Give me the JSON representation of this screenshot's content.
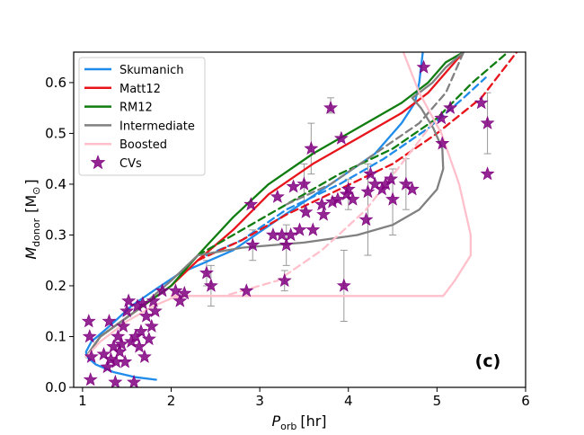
{
  "chart_data": {
    "type": "scatter",
    "panel_label": "(c)",
    "xlabel": "P",
    "xlabel_sub": "orb",
    "xlabel_unit": "[hr]",
    "ylabel": "M",
    "ylabel_sub": "donor",
    "ylabel_unit": "[M",
    "ylabel_unit_sub": "⊙",
    "ylabel_unit_close": "]",
    "xlim": [
      0.9,
      6.0
    ],
    "ylim": [
      0.0,
      0.66
    ],
    "xticks": [
      1,
      2,
      3,
      4,
      5,
      6
    ],
    "yticks": [
      0.0,
      0.1,
      0.2,
      0.3,
      0.4,
      0.5,
      0.6
    ],
    "ytick_labels": [
      "0.0",
      "0.1",
      "0.2",
      "0.3",
      "0.4",
      "0.5",
      "0.6"
    ],
    "legend_position": "top-left",
    "legend": [
      {
        "label": "Skumanich",
        "color": "#1f8ceb",
        "kind": "line"
      },
      {
        "label": "Matt12",
        "color": "#e8141c",
        "kind": "line"
      },
      {
        "label": "RM12",
        "color": "#0f7d0f",
        "kind": "line"
      },
      {
        "label": "Intermediate",
        "color": "#808080",
        "kind": "line"
      },
      {
        "label": "Boosted",
        "color": "#ffc0cb",
        "kind": "line"
      },
      {
        "label": "CVs",
        "color": "#800080",
        "kind": "star"
      }
    ],
    "series": [
      {
        "name": "Skumanich",
        "color": "#1f8ceb",
        "style": "solid",
        "x": [
          1.83,
          1.6,
          1.35,
          1.15,
          1.05,
          1.04,
          1.1,
          1.3,
          1.55,
          1.8,
          2.1,
          2.3,
          2.7,
          3.2,
          3.8,
          4.3,
          4.6,
          4.75,
          4.8,
          4.82,
          4.84
        ],
        "y": [
          0.015,
          0.02,
          0.03,
          0.045,
          0.06,
          0.07,
          0.09,
          0.12,
          0.16,
          0.19,
          0.225,
          0.24,
          0.27,
          0.33,
          0.4,
          0.46,
          0.52,
          0.56,
          0.6,
          0.63,
          0.66
        ]
      },
      {
        "name": "Skumanich (projected)",
        "color": "#1f8ceb",
        "style": "dashed",
        "x": [
          2.4,
          2.8,
          3.3,
          3.9,
          4.4,
          4.9,
          5.3,
          5.55
        ],
        "y": [
          0.26,
          0.29,
          0.35,
          0.4,
          0.45,
          0.51,
          0.57,
          0.61
        ]
      },
      {
        "name": "Matt12",
        "color": "#e8141c",
        "style": "solid",
        "x": [
          1.04,
          1.2,
          1.6,
          2.0,
          2.3,
          2.7,
          3.1,
          3.6,
          4.1,
          4.6,
          4.9,
          5.1,
          5.3
        ],
        "y": [
          0.06,
          0.1,
          0.15,
          0.2,
          0.25,
          0.31,
          0.38,
          0.44,
          0.49,
          0.54,
          0.58,
          0.62,
          0.66
        ]
      },
      {
        "name": "Matt12 (projected)",
        "color": "#e8141c",
        "style": "dashed",
        "x": [
          2.3,
          2.8,
          3.3,
          3.9,
          4.5,
          5.0,
          5.5,
          5.9
        ],
        "y": [
          0.25,
          0.29,
          0.34,
          0.39,
          0.44,
          0.5,
          0.57,
          0.66
        ]
      },
      {
        "name": "RM12",
        "color": "#0f7d0f",
        "style": "solid",
        "x": [
          1.04,
          1.2,
          1.6,
          2.0,
          2.3,
          2.7,
          3.1,
          3.6,
          4.1,
          4.6,
          4.9,
          5.1,
          5.3
        ],
        "y": [
          0.06,
          0.1,
          0.15,
          0.2,
          0.26,
          0.335,
          0.4,
          0.46,
          0.51,
          0.56,
          0.6,
          0.64,
          0.66
        ]
      },
      {
        "name": "RM12 (projected)",
        "color": "#0f7d0f",
        "style": "dashed",
        "x": [
          2.3,
          2.8,
          3.3,
          3.9,
          4.5,
          5.0,
          5.4,
          5.8
        ],
        "y": [
          0.26,
          0.31,
          0.36,
          0.42,
          0.47,
          0.53,
          0.6,
          0.66
        ]
      },
      {
        "name": "Intermediate",
        "color": "#808080",
        "style": "solid",
        "x": [
          1.04,
          1.2,
          1.6,
          2.0,
          2.3,
          2.8,
          3.5,
          4.1,
          4.5,
          4.8,
          5.0,
          5.07,
          5.06,
          4.96,
          4.82,
          4.72,
          4.8,
          4.95,
          5.1,
          5.3
        ],
        "y": [
          0.06,
          0.1,
          0.15,
          0.21,
          0.26,
          0.275,
          0.285,
          0.3,
          0.32,
          0.35,
          0.39,
          0.43,
          0.47,
          0.51,
          0.55,
          0.57,
          0.58,
          0.6,
          0.63,
          0.66
        ]
      },
      {
        "name": "Intermediate (projected)",
        "color": "#808080",
        "style": "dashed",
        "x": [
          3.3,
          3.8,
          4.3,
          4.8,
          5.1,
          5.3
        ],
        "y": [
          0.36,
          0.4,
          0.46,
          0.52,
          0.58,
          0.66
        ]
      },
      {
        "name": "Boosted",
        "color": "#ffc0cb",
        "style": "solid",
        "x": [
          1.04,
          1.2,
          1.5,
          1.8,
          2.0,
          2.2,
          3.0,
          4.0,
          5.07,
          5.2,
          5.38,
          5.38,
          5.25,
          5.05,
          4.8,
          4.62
        ],
        "y": [
          0.06,
          0.09,
          0.13,
          0.16,
          0.175,
          0.18,
          0.18,
          0.18,
          0.18,
          0.21,
          0.26,
          0.3,
          0.4,
          0.5,
          0.58,
          0.66
        ]
      },
      {
        "name": "Boosted (projected)",
        "color": "#ffc0cb",
        "style": "dashed",
        "x": [
          2.0,
          2.6,
          3.2,
          3.7,
          4.2,
          4.6,
          4.95
        ],
        "y": [
          0.18,
          0.18,
          0.21,
          0.27,
          0.35,
          0.44,
          0.52
        ]
      }
    ],
    "points": [
      {
        "x": 1.07,
        "y": 0.13
      },
      {
        "x": 1.08,
        "y": 0.1
      },
      {
        "x": 1.09,
        "y": 0.015
      },
      {
        "x": 1.1,
        "y": 0.06
      },
      {
        "x": 1.24,
        "y": 0.065
      },
      {
        "x": 1.28,
        "y": 0.04
      },
      {
        "x": 1.3,
        "y": 0.13
      },
      {
        "x": 1.32,
        "y": 0.055
      },
      {
        "x": 1.35,
        "y": 0.08
      },
      {
        "x": 1.37,
        "y": 0.01
      },
      {
        "x": 1.38,
        "y": 0.05
      },
      {
        "x": 1.4,
        "y": 0.1
      },
      {
        "x": 1.42,
        "y": 0.07
      },
      {
        "x": 1.44,
        "y": 0.085
      },
      {
        "x": 1.46,
        "y": 0.12
      },
      {
        "x": 1.48,
        "y": 0.05
      },
      {
        "x": 1.5,
        "y": 0.15
      },
      {
        "x": 1.52,
        "y": 0.17
      },
      {
        "x": 1.55,
        "y": 0.09
      },
      {
        "x": 1.58,
        "y": 0.01
      },
      {
        "x": 1.6,
        "y": 0.1
      },
      {
        "x": 1.62,
        "y": 0.16
      },
      {
        "x": 1.64,
        "y": 0.08
      },
      {
        "x": 1.66,
        "y": 0.11
      },
      {
        "x": 1.68,
        "y": 0.165
      },
      {
        "x": 1.7,
        "y": 0.06
      },
      {
        "x": 1.72,
        "y": 0.14
      },
      {
        "x": 1.75,
        "y": 0.095
      },
      {
        "x": 1.78,
        "y": 0.12
      },
      {
        "x": 1.8,
        "y": 0.17
      },
      {
        "x": 1.82,
        "y": 0.15
      },
      {
        "x": 1.9,
        "y": 0.19
      },
      {
        "x": 2.05,
        "y": 0.19
      },
      {
        "x": 2.1,
        "y": 0.17
      },
      {
        "x": 2.15,
        "y": 0.185
      },
      {
        "x": 2.4,
        "y": 0.225
      },
      {
        "x": 2.45,
        "y": 0.2
      },
      {
        "x": 2.85,
        "y": 0.19
      },
      {
        "x": 2.9,
        "y": 0.36
      },
      {
        "x": 2.92,
        "y": 0.28
      },
      {
        "x": 3.15,
        "y": 0.3
      },
      {
        "x": 3.2,
        "y": 0.375
      },
      {
        "x": 3.25,
        "y": 0.3
      },
      {
        "x": 3.28,
        "y": 0.21
      },
      {
        "x": 3.3,
        "y": 0.28
      },
      {
        "x": 3.35,
        "y": 0.3
      },
      {
        "x": 3.38,
        "y": 0.395
      },
      {
        "x": 3.45,
        "y": 0.31
      },
      {
        "x": 3.5,
        "y": 0.4
      },
      {
        "x": 3.52,
        "y": 0.345
      },
      {
        "x": 3.58,
        "y": 0.47
      },
      {
        "x": 3.6,
        "y": 0.31
      },
      {
        "x": 3.7,
        "y": 0.36
      },
      {
        "x": 3.72,
        "y": 0.34
      },
      {
        "x": 3.8,
        "y": 0.55
      },
      {
        "x": 3.82,
        "y": 0.365
      },
      {
        "x": 3.88,
        "y": 0.37
      },
      {
        "x": 3.92,
        "y": 0.49
      },
      {
        "x": 3.95,
        "y": 0.2
      },
      {
        "x": 3.98,
        "y": 0.38
      },
      {
        "x": 4.0,
        "y": 0.39
      },
      {
        "x": 4.05,
        "y": 0.37
      },
      {
        "x": 4.2,
        "y": 0.33
      },
      {
        "x": 4.22,
        "y": 0.385
      },
      {
        "x": 4.25,
        "y": 0.42
      },
      {
        "x": 4.3,
        "y": 0.4
      },
      {
        "x": 4.38,
        "y": 0.39
      },
      {
        "x": 4.42,
        "y": 0.4
      },
      {
        "x": 4.48,
        "y": 0.41
      },
      {
        "x": 4.5,
        "y": 0.37
      },
      {
        "x": 4.65,
        "y": 0.4
      },
      {
        "x": 4.72,
        "y": 0.39
      },
      {
        "x": 4.85,
        "y": 0.63
      },
      {
        "x": 5.05,
        "y": 0.53
      },
      {
        "x": 5.06,
        "y": 0.48
      },
      {
        "x": 5.15,
        "y": 0.55
      },
      {
        "x": 5.5,
        "y": 0.56
      },
      {
        "x": 5.57,
        "y": 0.52
      },
      {
        "x": 5.57,
        "y": 0.42
      }
    ],
    "error_bars": [
      {
        "x": 3.8,
        "lo": 0.54,
        "hi": 0.57
      },
      {
        "x": 3.58,
        "lo": 0.42,
        "hi": 0.52
      },
      {
        "x": 3.3,
        "lo": 0.24,
        "hi": 0.32
      },
      {
        "x": 3.28,
        "lo": 0.19,
        "hi": 0.23
      },
      {
        "x": 2.92,
        "lo": 0.25,
        "hi": 0.31
      },
      {
        "x": 3.95,
        "lo": 0.13,
        "hi": 0.27
      },
      {
        "x": 4.22,
        "lo": 0.26,
        "hi": 0.44
      },
      {
        "x": 4.5,
        "lo": 0.3,
        "hi": 0.43
      },
      {
        "x": 4.65,
        "lo": 0.35,
        "hi": 0.45
      },
      {
        "x": 3.5,
        "lo": 0.35,
        "hi": 0.44
      },
      {
        "x": 5.57,
        "lo": 0.46,
        "hi": 0.58
      },
      {
        "x": 2.45,
        "lo": 0.16,
        "hi": 0.24
      },
      {
        "x": 2.4,
        "lo": 0.2,
        "hi": 0.25
      },
      {
        "x": 4.0,
        "lo": 0.35,
        "hi": 0.41
      }
    ]
  }
}
